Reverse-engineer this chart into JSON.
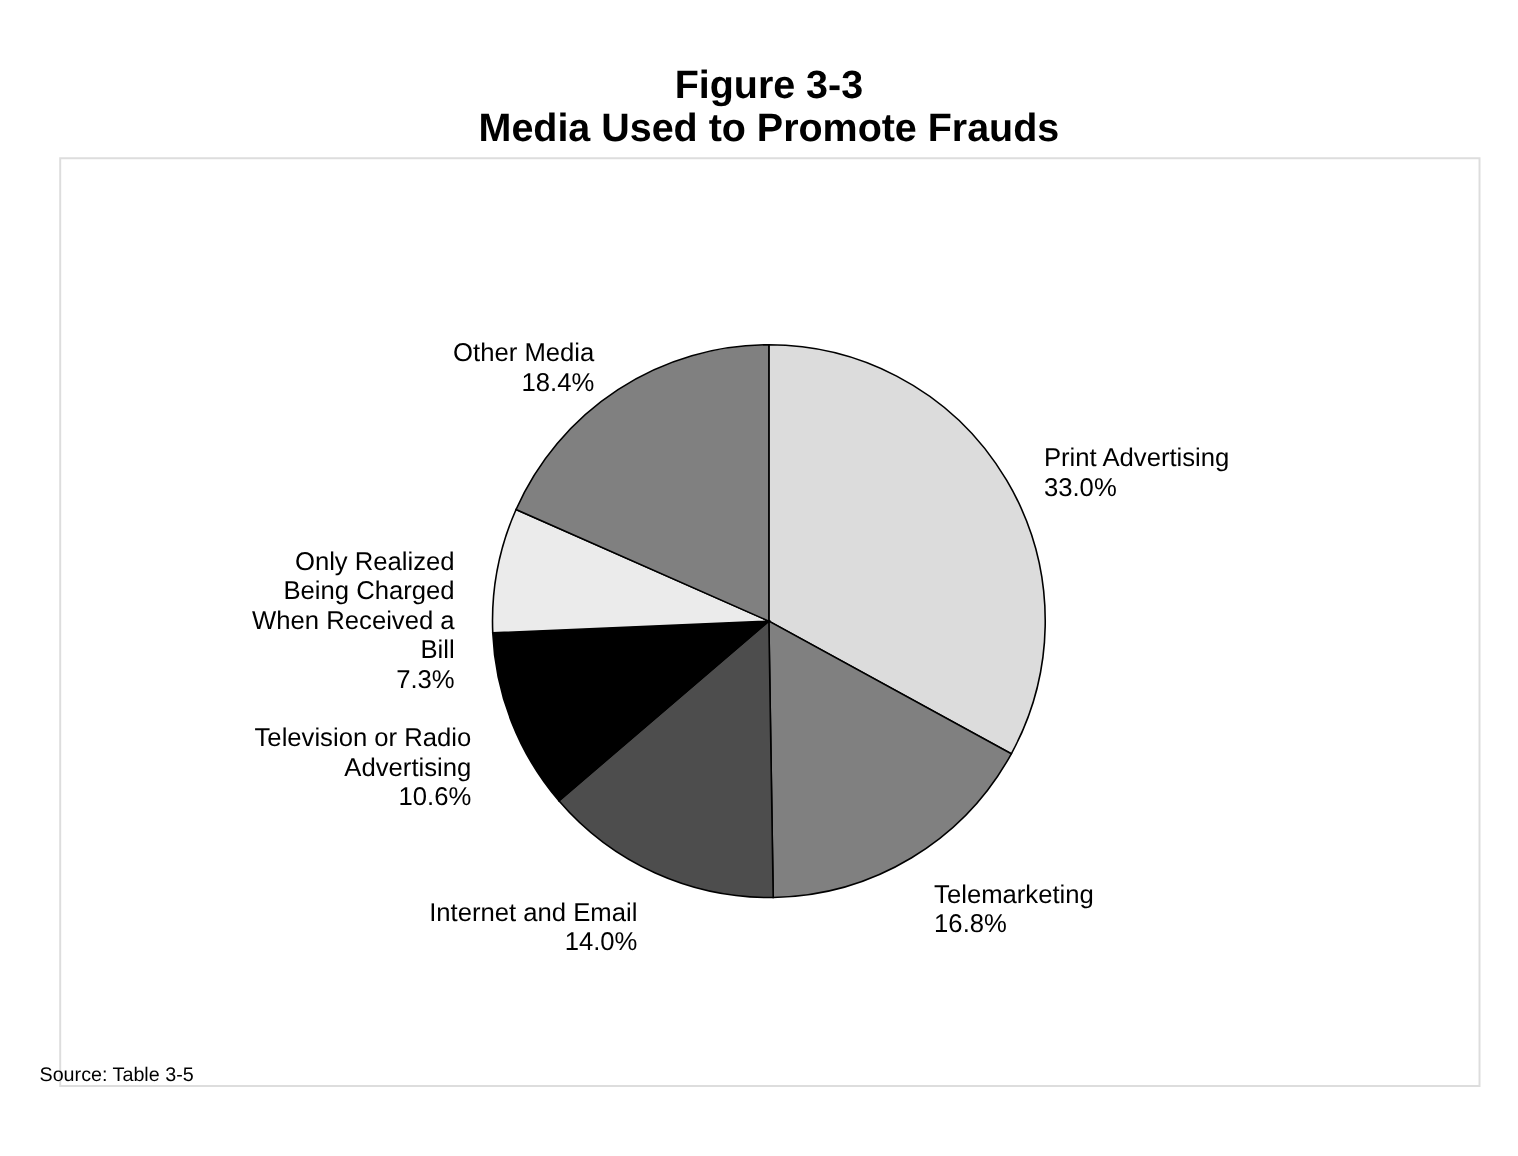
{
  "chart_data": {
    "type": "pie",
    "title": "Figure 3-3\nMedia Used to Promote Frauds",
    "categories": [
      "Print Advertising",
      "Telemarketing",
      "Internet and Email",
      "Television or Radio\nAdvertising",
      "Only Realized\nBeing Charged\nWhen Received a\nBill",
      "Other Media"
    ],
    "values": [
      33.0,
      16.8,
      14.0,
      10.6,
      7.3,
      18.4
    ],
    "value_labels": [
      "33.0%",
      "16.8%",
      "14.0%",
      "10.6%",
      "7.3%",
      "18.4%"
    ],
    "colors": [
      "#dcdcdc",
      "#808080",
      "#4d4d4d",
      "#000000",
      "#ebebeb",
      "#808080"
    ],
    "annotations": [
      "Source: Table 3-5"
    ]
  }
}
